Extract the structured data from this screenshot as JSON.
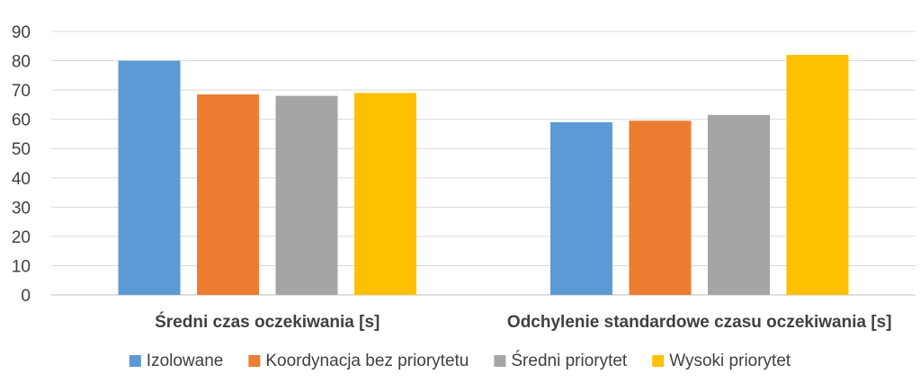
{
  "chart_data": {
    "type": "bar",
    "title": "",
    "xlabel": "",
    "ylabel": "",
    "categories": [
      "Średni czas oczekiwania [s]",
      "Odchylenie standardowe czasu oczekiwania [s]"
    ],
    "series": [
      {
        "name": "Izolowane",
        "color": "#5b9bd5",
        "values": [
          80,
          59
        ]
      },
      {
        "name": "Koordynacja bez priorytetu",
        "color": "#ed7d31",
        "values": [
          68.5,
          59.5
        ]
      },
      {
        "name": "Średni priorytet",
        "color": "#a5a5a5",
        "values": [
          68,
          61.5
        ]
      },
      {
        "name": "Wysoki priorytet",
        "color": "#ffc000",
        "values": [
          69,
          82
        ]
      }
    ],
    "ylim": [
      0,
      90
    ],
    "yticks": [
      0,
      10,
      20,
      30,
      40,
      50,
      60,
      70,
      80,
      90
    ],
    "grid": true,
    "legend_position": "bottom"
  }
}
